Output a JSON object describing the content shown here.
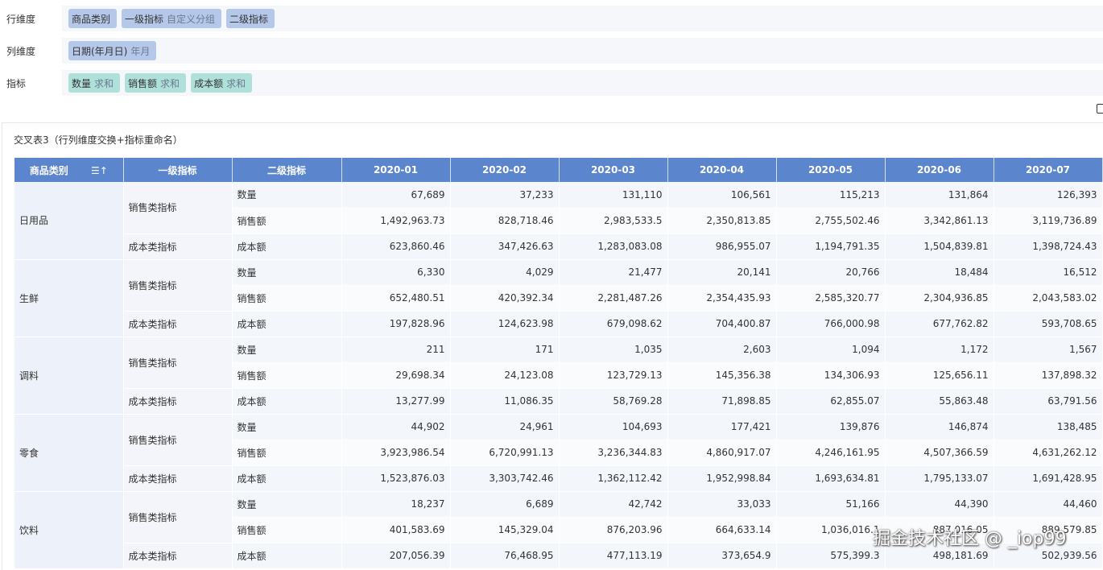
{
  "config": {
    "rows": {
      "label": "行维度",
      "chips": [
        {
          "name": "商品类别",
          "sub": ""
        },
        {
          "name": "一级指标",
          "sub": "自定义分组"
        },
        {
          "name": "二级指标",
          "sub": ""
        }
      ]
    },
    "cols": {
      "label": "列维度",
      "chips": [
        {
          "name": "日期(年月日)",
          "sub": "年月"
        }
      ]
    },
    "metrics": {
      "label": "指标",
      "chips": [
        {
          "name": "数量",
          "sub": "求和"
        },
        {
          "name": "销售额",
          "sub": "求和"
        },
        {
          "name": "成本额",
          "sub": "求和"
        }
      ]
    }
  },
  "panel": {
    "title": "交叉表3（行列维度交换+指标重命名）"
  },
  "table": {
    "header": {
      "cat": "商品类别",
      "sort_icon": "☰↑",
      "l1": "一级指标",
      "l2": "二级指标",
      "months": [
        "2020-01",
        "2020-02",
        "2020-03",
        "2020-04",
        "2020-05",
        "2020-06",
        "2020-07"
      ]
    },
    "groups": [
      {
        "category": "日用品",
        "rows": [
          {
            "l1": "销售类指标",
            "l2": "数量",
            "values": [
              "67,689",
              "37,233",
              "131,110",
              "106,561",
              "115,213",
              "131,864",
              "126,393"
            ]
          },
          {
            "l1": "",
            "l2": "销售额",
            "values": [
              "1,492,963.73",
              "828,718.46",
              "2,983,533.5",
              "2,350,813.85",
              "2,755,502.46",
              "3,342,861.13",
              "3,119,736.89"
            ]
          },
          {
            "l1": "成本类指标",
            "l2": "成本额",
            "values": [
              "623,860.46",
              "347,426.63",
              "1,283,083.08",
              "986,955.07",
              "1,194,791.35",
              "1,504,839.81",
              "1,398,724.43"
            ]
          }
        ]
      },
      {
        "category": "生鲜",
        "rows": [
          {
            "l1": "销售类指标",
            "l2": "数量",
            "values": [
              "6,330",
              "4,029",
              "21,477",
              "20,141",
              "20,766",
              "18,484",
              "16,512"
            ]
          },
          {
            "l1": "",
            "l2": "销售额",
            "values": [
              "652,480.51",
              "420,392.34",
              "2,281,487.26",
              "2,354,435.93",
              "2,585,320.77",
              "2,304,936.85",
              "2,043,583.02"
            ]
          },
          {
            "l1": "成本类指标",
            "l2": "成本额",
            "values": [
              "197,828.96",
              "124,623.98",
              "679,098.62",
              "704,400.87",
              "766,000.98",
              "677,762.82",
              "593,708.65"
            ]
          }
        ]
      },
      {
        "category": "调料",
        "rows": [
          {
            "l1": "销售类指标",
            "l2": "数量",
            "values": [
              "211",
              "171",
              "1,035",
              "2,603",
              "1,094",
              "1,172",
              "1,567"
            ]
          },
          {
            "l1": "",
            "l2": "销售额",
            "values": [
              "29,698.34",
              "24,123.08",
              "123,729.13",
              "145,356.38",
              "134,306.93",
              "125,656.11",
              "137,898.32"
            ]
          },
          {
            "l1": "成本类指标",
            "l2": "成本额",
            "values": [
              "13,277.99",
              "11,086.35",
              "58,769.28",
              "71,898.85",
              "62,855.07",
              "55,863.48",
              "63,791.56"
            ]
          }
        ]
      },
      {
        "category": "零食",
        "rows": [
          {
            "l1": "销售类指标",
            "l2": "数量",
            "values": [
              "44,902",
              "24,961",
              "104,693",
              "177,421",
              "139,876",
              "146,874",
              "138,485"
            ]
          },
          {
            "l1": "",
            "l2": "销售额",
            "values": [
              "3,923,986.54",
              "6,720,991.13",
              "3,236,344.83",
              "4,860,917.07",
              "4,246,161.95",
              "4,507,366.59",
              "4,631,262.12"
            ]
          },
          {
            "l1": "成本类指标",
            "l2": "成本额",
            "values": [
              "1,523,876.03",
              "3,303,742.46",
              "1,362,112.42",
              "1,952,998.84",
              "1,693,634.81",
              "1,795,133.07",
              "1,691,428.95"
            ]
          }
        ]
      },
      {
        "category": "饮料",
        "rows": [
          {
            "l1": "销售类指标",
            "l2": "数量",
            "values": [
              "18,237",
              "6,689",
              "42,742",
              "33,033",
              "51,166",
              "44,390",
              "44,460"
            ]
          },
          {
            "l1": "",
            "l2": "销售额",
            "values": [
              "401,583.69",
              "145,329.04",
              "876,203.96",
              "664,633.14",
              "1,036,016.1",
              "887,016.05",
              "889,579.85"
            ]
          },
          {
            "l1": "成本类指标",
            "l2": "成本额",
            "values": [
              "207,056.39",
              "76,468.95",
              "477,113.19",
              "373,654.9",
              "575,399.3",
              "498,181.69",
              "502,939.56"
            ]
          }
        ]
      }
    ]
  },
  "watermark": "掘金技术社区 @ _iop99"
}
